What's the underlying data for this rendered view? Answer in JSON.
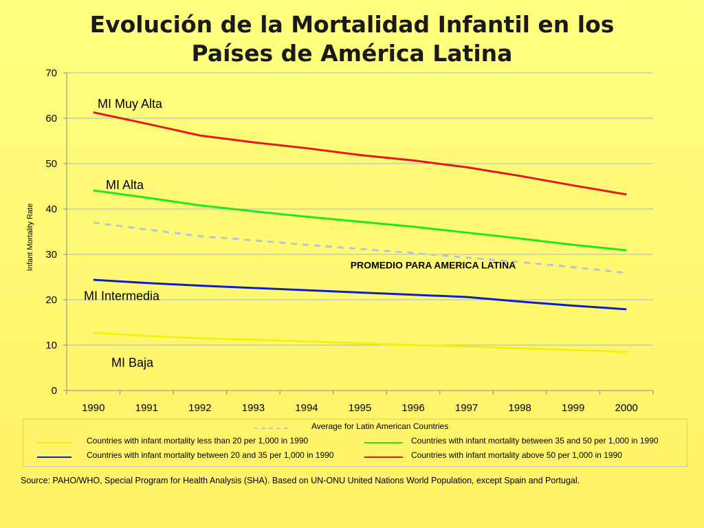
{
  "chart_data": {
    "type": "line",
    "title": "Evolución de la Mortalidad Infantil en los Países de América Latina",
    "title_lines": [
      "Evolución de la Mortalidad Infantil en los",
      "Países de América Latina"
    ],
    "ylabel": "Infant Mortality Rate",
    "xlabel": "",
    "x": [
      "1990",
      "1991",
      "1992",
      "1993",
      "1994",
      "1995",
      "1996",
      "1997",
      "1998",
      "1999",
      "2000"
    ],
    "ylim": [
      0,
      70
    ],
    "yticks": [
      "0",
      "10",
      "20",
      "30",
      "40",
      "50",
      "60",
      "70"
    ],
    "grid": true,
    "legend_placement": "bottom",
    "series": [
      {
        "key": "muy_alta",
        "name": "Countries with infant mortality above 50 per 1,000 in 1990",
        "label": "MI Muy Alta",
        "color": "#e8161b",
        "dashed": false,
        "values": [
          61.3,
          58.8,
          56.2,
          54.7,
          53.4,
          51.9,
          50.7,
          49.2,
          47.3,
          45.2,
          43.2
        ]
      },
      {
        "key": "alta",
        "name": "Countries with infant mortality between 35 and 50 per 1,000 in 1990",
        "label": "MI Alta",
        "color": "#1ee81e",
        "dashed": false,
        "values": [
          44.1,
          42.5,
          40.8,
          39.5,
          38.3,
          37.2,
          36.1,
          34.8,
          33.5,
          32.1,
          30.9
        ]
      },
      {
        "key": "promedio",
        "name": "Average for Latin American Countries",
        "label": "PROMEDIO PARA AMERICA LATINA",
        "color": "#b9c4dc",
        "dashed": true,
        "values": [
          37.0,
          35.5,
          34.0,
          33.1,
          32.1,
          31.2,
          30.3,
          29.3,
          28.3,
          27.2,
          25.9
        ]
      },
      {
        "key": "intermedia",
        "name": "Countries with infant mortality between 20 and 35 per 1,000 in 1990",
        "label": "MI Intermedia",
        "color": "#0c1ec8",
        "dashed": false,
        "values": [
          24.4,
          23.7,
          23.1,
          22.6,
          22.1,
          21.6,
          21.1,
          20.6,
          19.6,
          18.7,
          17.9
        ]
      },
      {
        "key": "baja",
        "name": "Countries with infant mortality less than 20 per 1,000 in 1990",
        "label": "MI Baja",
        "color": "#f2f20a",
        "dashed": false,
        "values": [
          12.7,
          12.0,
          11.5,
          11.2,
          10.8,
          10.4,
          10.0,
          9.7,
          9.3,
          8.9,
          8.5
        ]
      }
    ]
  },
  "legend": {
    "average": "Average for Latin American Countries",
    "less_20": "Countries with infant mortality less than 20 per 1,000 in 1990",
    "between_35_50": "Countries with infant mortality between 35 and 50 per 1,000 in 1990",
    "between_20_35": "Countries with infant mortality between 20 and 35 per 1,000 in 1990",
    "above_50": "Countries with infant mortality above 50 per 1,000 in 1990"
  },
  "source": "Source: PAHO/WHO, Special Program for Health Analysis (SHA). Based on UN-ONU United Nations World Population, except Spain and Portugal."
}
